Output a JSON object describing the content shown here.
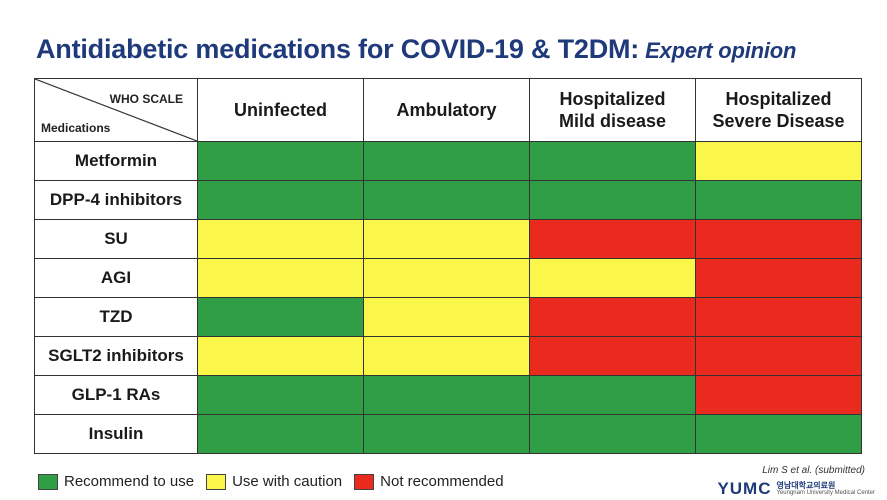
{
  "title": {
    "main": "Antidiabetic medications for COVID-19 & T2DM:",
    "sub": "Expert opinion"
  },
  "table": {
    "corner": {
      "top_label": "WHO SCALE",
      "bottom_label": "Medications"
    },
    "columns": [
      "Uninfected",
      "Ambulatory",
      "Hospitalized\nMild disease",
      "Hospitalized\nSevere Disease"
    ],
    "rows": [
      {
        "name": "Metformin",
        "levels": [
          "recommend",
          "recommend",
          "recommend",
          "caution"
        ]
      },
      {
        "name": "DPP-4 inhibitors",
        "levels": [
          "recommend",
          "recommend",
          "recommend",
          "recommend"
        ]
      },
      {
        "name": "SU",
        "levels": [
          "caution",
          "caution",
          "not",
          "not"
        ]
      },
      {
        "name": "AGI",
        "levels": [
          "caution",
          "caution",
          "caution",
          "not"
        ]
      },
      {
        "name": "TZD",
        "levels": [
          "recommend",
          "caution",
          "not",
          "not"
        ]
      },
      {
        "name": "SGLT2 inhibitors",
        "levels": [
          "caution",
          "caution",
          "not",
          "not"
        ]
      },
      {
        "name": "GLP-1 RAs",
        "levels": [
          "recommend",
          "recommend",
          "recommend",
          "not"
        ]
      },
      {
        "name": "Insulin",
        "levels": [
          "recommend",
          "recommend",
          "recommend",
          "recommend"
        ]
      }
    ]
  },
  "legend": {
    "recommend": "Recommend to use",
    "caution": "Use with caution",
    "not": "Not recommended"
  },
  "colors": {
    "recommend": "#2f9e44",
    "caution": "#fbf64a",
    "not": "#ea2a1f",
    "title": "#1f3a7a"
  },
  "citation": "Lim S et al. (submitted)",
  "logo": {
    "mark": "YUMC",
    "korean": "영남대학교의료원",
    "english": "Yeungnam University Medical Center"
  }
}
